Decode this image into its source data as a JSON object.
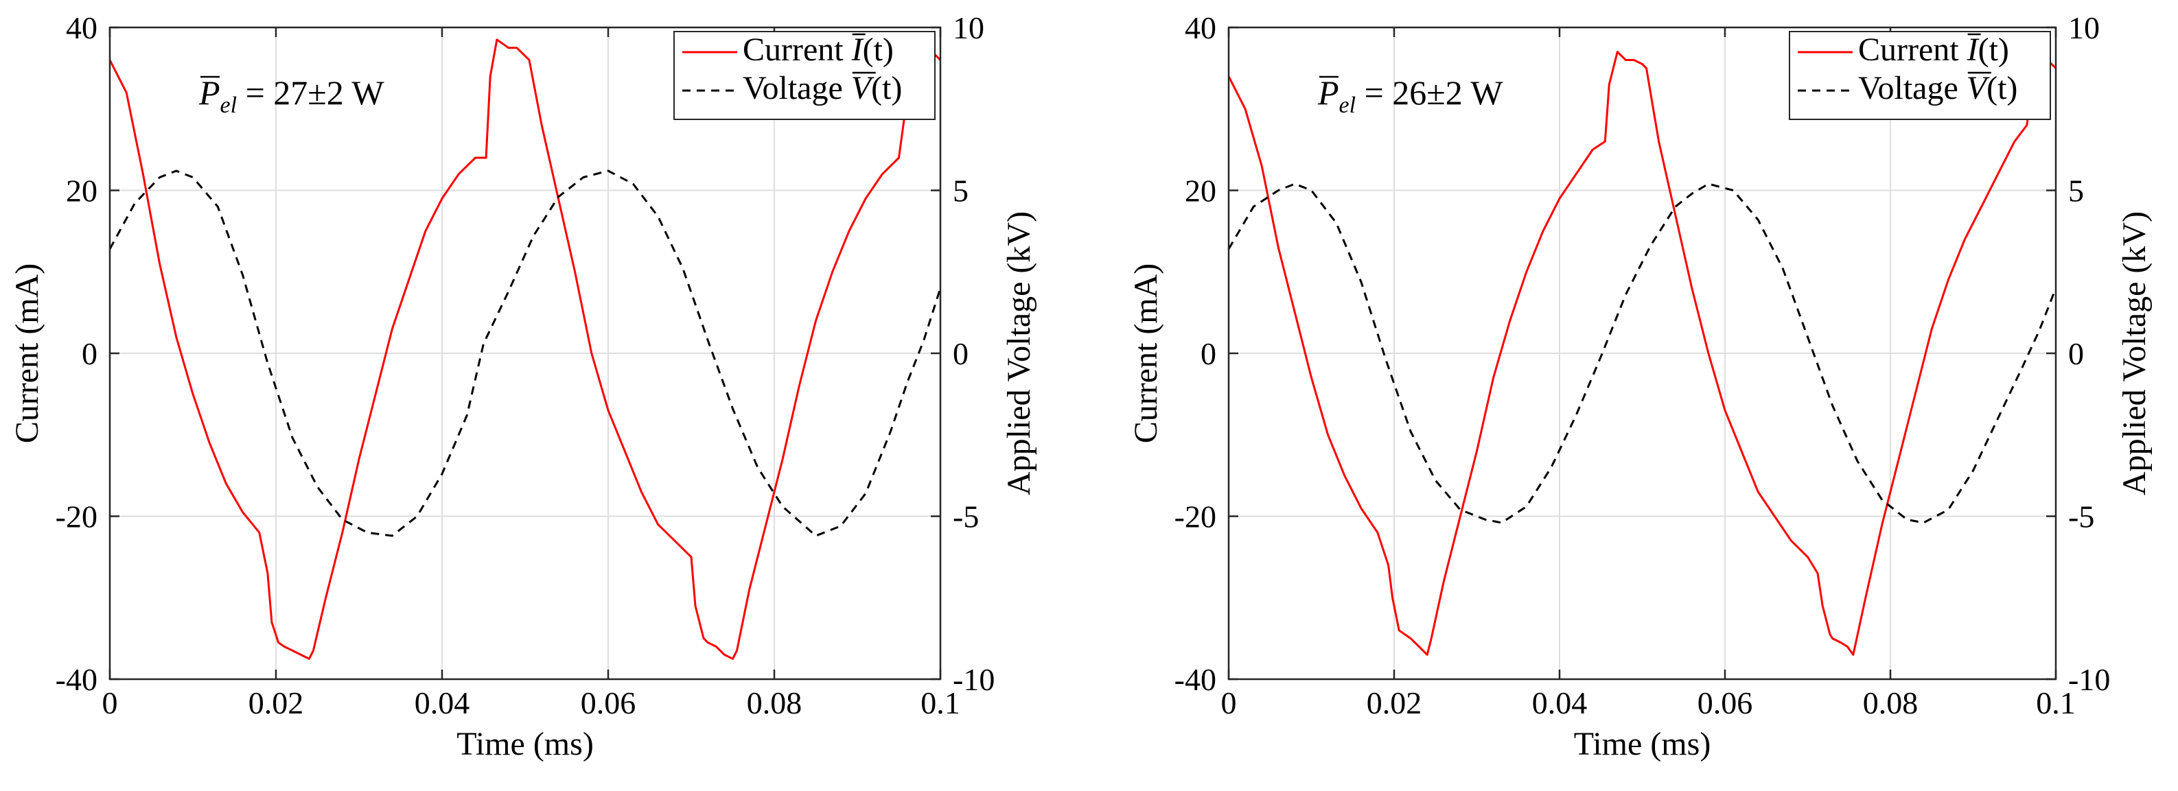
{
  "chart_data": [
    {
      "type": "line",
      "id": "left",
      "xlabel": "Time (ms)",
      "ylabel_left": "Current (mA)",
      "ylabel_right": "Applied Voltage (kV)",
      "xlim": [
        0,
        0.1
      ],
      "ylim_left": [
        -40,
        40
      ],
      "ylim_right": [
        -10,
        10
      ],
      "xticks": [
        0,
        0.02,
        0.04,
        0.06,
        0.08,
        0.1
      ],
      "xtick_labels": [
        "0",
        "0.02",
        "0.04",
        "0.06",
        "0.08",
        "0.1"
      ],
      "yticks_left": [
        -40,
        -20,
        0,
        20,
        40
      ],
      "ytick_labels_left": [
        "-40",
        "-20",
        "0",
        "20",
        "40"
      ],
      "yticks_right": [
        -10,
        -5,
        0,
        5,
        10
      ],
      "ytick_labels_right": [
        "-10",
        "-5",
        "0",
        "5",
        "10"
      ],
      "grid": true,
      "annotation": {
        "symbol": "P",
        "subscript": "el",
        "text": " = 27±2 W"
      },
      "legend": {
        "placement": "top-right",
        "entries": [
          {
            "label_prefix": "Current ",
            "label_symbol": "I",
            "label_suffix": "(t)",
            "color": "#ff0000",
            "style": "solid"
          },
          {
            "label_prefix": "Voltage ",
            "label_symbol": "V",
            "label_suffix": "(t)",
            "color": "#000000",
            "style": "dashed"
          }
        ]
      },
      "series": [
        {
          "name": "Current I(t)",
          "axis": "left",
          "color": "#ff0000",
          "x": [
            0,
            0.002,
            0.004,
            0.006,
            0.008,
            0.01,
            0.012,
            0.014,
            0.016,
            0.018,
            0.019,
            0.0195,
            0.0203,
            0.021,
            0.022,
            0.023,
            0.024,
            0.0245,
            0.026,
            0.028,
            0.03,
            0.032,
            0.034,
            0.036,
            0.038,
            0.04,
            0.042,
            0.044,
            0.0453,
            0.0458,
            0.0466,
            0.048,
            0.049,
            0.05,
            0.0505,
            0.052,
            0.054,
            0.056,
            0.058,
            0.06,
            0.062,
            0.064,
            0.066,
            0.068,
            0.07,
            0.0705,
            0.0715,
            0.072,
            0.073,
            0.074,
            0.075,
            0.0755,
            0.077,
            0.079,
            0.081,
            0.083,
            0.085,
            0.087,
            0.089,
            0.091,
            0.093,
            0.095,
            0.0958,
            0.0962,
            0.097,
            0.098,
            0.099,
            0.1
          ],
          "values": [
            36,
            32,
            22,
            11,
            2,
            -5,
            -11,
            -16,
            -19.5,
            -22,
            -27,
            -33,
            -35.5,
            -36,
            -36.5,
            -37,
            -37.5,
            -36.5,
            -30,
            -22,
            -13,
            -5,
            3,
            9,
            15,
            19,
            22,
            24,
            24,
            34,
            38.5,
            37.5,
            37.5,
            36.5,
            36,
            28,
            19,
            10,
            0,
            -7,
            -12,
            -17,
            -21,
            -23,
            -25,
            -31,
            -35,
            -35.5,
            -36,
            -37,
            -37.5,
            -36.5,
            -29,
            -21,
            -13,
            -4,
            4,
            10,
            15,
            19,
            22,
            24,
            30,
            36,
            38.5,
            37,
            37,
            36
          ]
        },
        {
          "name": "Voltage V(t)",
          "axis": "right",
          "color": "#000000",
          "x": [
            0,
            0.003,
            0.006,
            0.008,
            0.01,
            0.013,
            0.016,
            0.019,
            0.022,
            0.025,
            0.028,
            0.031,
            0.034,
            0.037,
            0.04,
            0.043,
            0.045,
            0.048,
            0.051,
            0.054,
            0.057,
            0.06,
            0.063,
            0.066,
            0.069,
            0.072,
            0.075,
            0.078,
            0.081,
            0.085,
            0.088,
            0.091,
            0.094,
            0.096,
            0.098,
            0.1
          ],
          "values": [
            3.2,
            4.6,
            5.4,
            5.6,
            5.4,
            4.5,
            2.4,
            -0.3,
            -2.6,
            -4.1,
            -5.1,
            -5.5,
            -5.6,
            -5.0,
            -3.7,
            -1.9,
            0.3,
            1.9,
            3.6,
            4.8,
            5.4,
            5.6,
            5.2,
            4.2,
            2.6,
            0.4,
            -1.7,
            -3.5,
            -4.7,
            -5.6,
            -5.3,
            -4.3,
            -2.4,
            -0.9,
            0.4,
            2.0
          ]
        }
      ]
    },
    {
      "type": "line",
      "id": "right",
      "xlabel": "Time (ms)",
      "ylabel_left": "Current (mA)",
      "ylabel_right": "Applied Voltage (kV)",
      "xlim": [
        0,
        0.1
      ],
      "ylim_left": [
        -40,
        40
      ],
      "ylim_right": [
        -10,
        10
      ],
      "xticks": [
        0,
        0.02,
        0.04,
        0.06,
        0.08,
        0.1
      ],
      "xtick_labels": [
        "0",
        "0.02",
        "0.04",
        "0.06",
        "0.08",
        "0.1"
      ],
      "yticks_left": [
        -40,
        -20,
        0,
        20,
        40
      ],
      "ytick_labels_left": [
        "-40",
        "-20",
        "0",
        "20",
        "40"
      ],
      "yticks_right": [
        -10,
        -5,
        0,
        5,
        10
      ],
      "ytick_labels_right": [
        "-10",
        "-5",
        "0",
        "5",
        "10"
      ],
      "grid": true,
      "annotation": {
        "symbol": "P",
        "subscript": "el",
        "text": " = 26±2 W"
      },
      "legend": {
        "placement": "top-right",
        "entries": [
          {
            "label_prefix": "Current ",
            "label_symbol": "I",
            "label_suffix": "(t)",
            "color": "#ff0000",
            "style": "solid"
          },
          {
            "label_prefix": "Voltage ",
            "label_symbol": "V",
            "label_suffix": "(t)",
            "color": "#000000",
            "style": "dashed"
          }
        ]
      },
      "series": [
        {
          "name": "Current I(t)",
          "axis": "left",
          "color": "#ff0000",
          "x": [
            0,
            0.002,
            0.004,
            0.006,
            0.008,
            0.01,
            0.012,
            0.014,
            0.016,
            0.018,
            0.0193,
            0.0198,
            0.0206,
            0.022,
            0.023,
            0.024,
            0.0245,
            0.026,
            0.028,
            0.03,
            0.032,
            0.034,
            0.036,
            0.038,
            0.04,
            0.042,
            0.044,
            0.0455,
            0.046,
            0.047,
            0.048,
            0.049,
            0.05,
            0.0505,
            0.052,
            0.054,
            0.056,
            0.058,
            0.06,
            0.062,
            0.064,
            0.066,
            0.068,
            0.07,
            0.0712,
            0.0718,
            0.0727,
            0.073,
            0.074,
            0.0748,
            0.0755,
            0.077,
            0.079,
            0.081,
            0.083,
            0.085,
            0.087,
            0.089,
            0.091,
            0.093,
            0.095,
            0.0965,
            0.0975,
            0.098,
            0.099,
            0.1
          ],
          "values": [
            34,
            30,
            23,
            13,
            5,
            -3,
            -10,
            -15,
            -19,
            -22,
            -26,
            -30,
            -34,
            -35,
            -36,
            -37,
            -35,
            -28,
            -20,
            -12,
            -3,
            4,
            10,
            15,
            19,
            22,
            25,
            26,
            33,
            37,
            36,
            36,
            35.5,
            35,
            26,
            17,
            8,
            0,
            -7,
            -12,
            -17,
            -20,
            -23,
            -25,
            -27,
            -31,
            -34.5,
            -35,
            -35.5,
            -36,
            -37,
            -30,
            -21,
            -13,
            -5,
            3,
            9,
            14,
            18,
            22,
            26,
            28,
            35,
            38,
            36,
            35
          ]
        },
        {
          "name": "Voltage V(t)",
          "axis": "right",
          "color": "#000000",
          "x": [
            0,
            0.003,
            0.006,
            0.008,
            0.01,
            0.013,
            0.016,
            0.019,
            0.022,
            0.025,
            0.028,
            0.031,
            0.033,
            0.036,
            0.039,
            0.042,
            0.045,
            0.048,
            0.051,
            0.054,
            0.056,
            0.058,
            0.061,
            0.064,
            0.067,
            0.07,
            0.073,
            0.076,
            0.079,
            0.082,
            0.084,
            0.087,
            0.09,
            0.093,
            0.096,
            0.098,
            0.1
          ],
          "values": [
            3.2,
            4.5,
            5.0,
            5.2,
            5.0,
            4.0,
            2.2,
            -0.2,
            -2.4,
            -3.9,
            -4.8,
            -5.1,
            -5.2,
            -4.7,
            -3.5,
            -1.9,
            -0.1,
            1.8,
            3.3,
            4.5,
            4.9,
            5.2,
            5.0,
            4.1,
            2.6,
            0.5,
            -1.6,
            -3.3,
            -4.5,
            -5.1,
            -5.2,
            -4.8,
            -3.6,
            -2.0,
            -0.4,
            0.7,
            2.0
          ]
        }
      ]
    }
  ]
}
